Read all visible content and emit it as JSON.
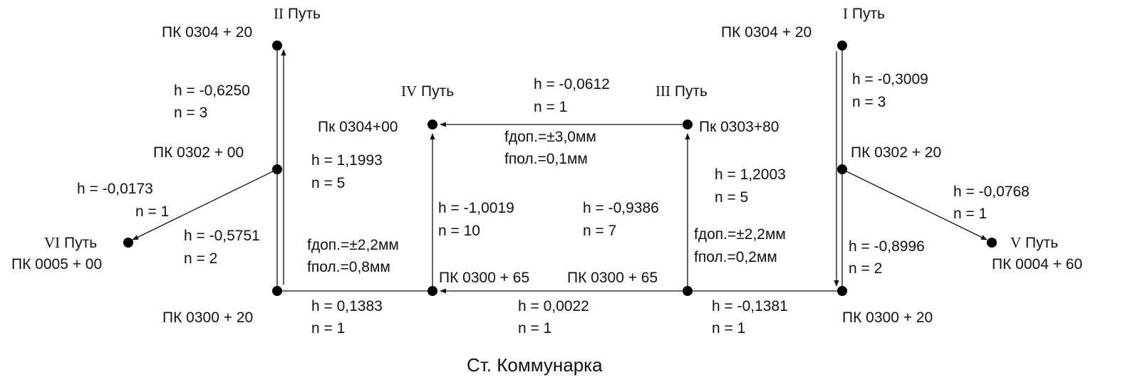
{
  "caption": "Ст. Коммунарка",
  "tracks": {
    "t2": {
      "roman": "II",
      "word": "Путь",
      "pk": "ПК 0304 + 20"
    },
    "t1": {
      "roman": "I",
      "word": "Путь",
      "pk": "ПК 0304 + 20"
    },
    "t4": {
      "roman": "IV",
      "word": "Путь"
    },
    "t3": {
      "roman": "III",
      "word": "Путь"
    },
    "t6": {
      "roman": "VI",
      "word": "Путь",
      "pk": "ПК 0005 + 00"
    },
    "t5": {
      "roman": "V",
      "word": "Путь",
      "pk": "ПК 0004 + 60"
    }
  },
  "points": {
    "l_mid": "ПК 0302 + 00",
    "l_bot": "ПК 0300 + 20",
    "r_mid": "ПК 0302 + 20",
    "r_bot": "ПК 0300 + 20",
    "c_tl": "Пк 0304+00",
    "c_tr": "Пк 0303+80",
    "c_bl": "ПК 0300 + 65",
    "c_br": "ПК 0300 + 65"
  },
  "measurements": {
    "left_top": {
      "h": "h = -0,6250",
      "n": "n = 3"
    },
    "left_diag": {
      "h": "h = -0,0173",
      "n": "n = 1"
    },
    "left_bot": {
      "h": "h = -0,5751",
      "n": "n = 2"
    },
    "lm_c": {
      "h": "h = 1,1993",
      "n": "n = 5"
    },
    "top_c": {
      "h": "h = -0,0612",
      "n": "n = 1"
    },
    "c_left": {
      "h": "h = -1,0019",
      "n": "n = 10"
    },
    "c_right": {
      "h": "h = -0,9386",
      "n": "n = 7"
    },
    "rm_c": {
      "h": "h = 1,2003",
      "n": "n = 5"
    },
    "right_top": {
      "h": "h = -0,3009",
      "n": "n = 3"
    },
    "right_diag": {
      "h": "h = -0,0768",
      "n": "n = 1"
    },
    "right_bot": {
      "h": "h = -0,8996",
      "n": "n = 2"
    },
    "bot_left": {
      "h": "h = 0,1383",
      "n": "n = 1"
    },
    "bot_mid": {
      "h": "h = 0,0022",
      "n": "n = 1"
    },
    "bot_right": {
      "h": "h = -0,1381",
      "n": "n = 1"
    }
  },
  "tolerances": {
    "top": {
      "allowed": "fдоп.=±3,0мм",
      "actual": "fпол.=0,1мм"
    },
    "left": {
      "allowed": "fдоп.=±2,2мм",
      "actual": "fпол.=0,8мм"
    },
    "right": {
      "allowed": "fдоп.=±2,2мм",
      "actual": "fпол.=0,2мм"
    }
  }
}
